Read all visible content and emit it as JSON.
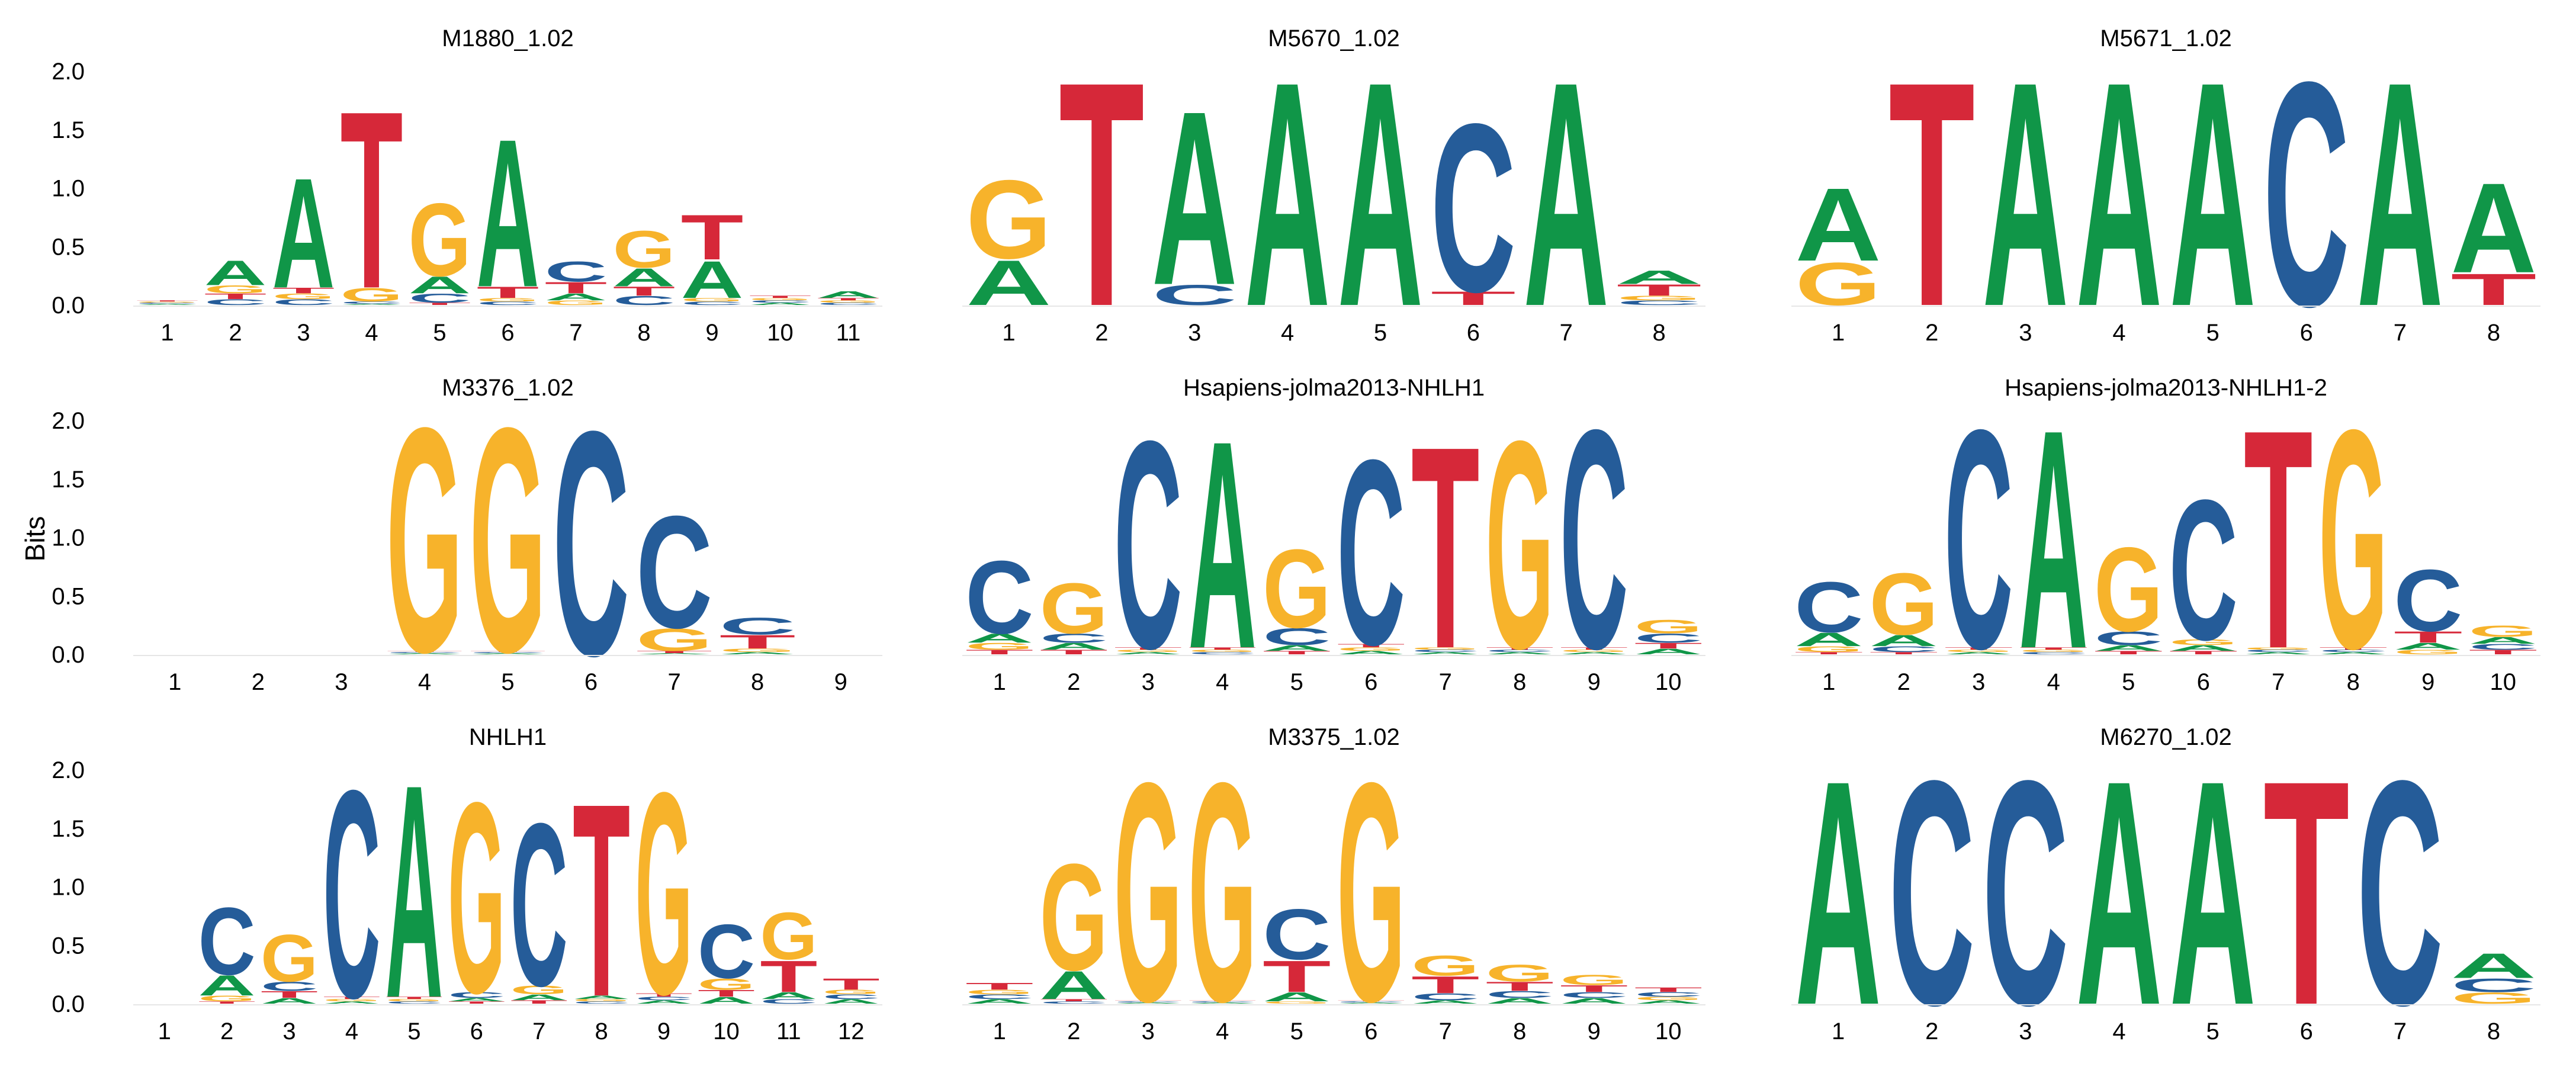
{
  "ylabel": "Bits",
  "colors": {
    "A": "#109648",
    "C": "#255C99",
    "G": "#F7B32B",
    "T": "#D62839"
  },
  "chart_data": [
    {
      "type": "sequence-logo",
      "title": "M1880_1.02",
      "ylim": [
        0,
        2.0
      ],
      "yticks": [
        "0.0",
        "0.5",
        "1.0",
        "1.5",
        "2.0"
      ],
      "positions": [
        {
          "A": 0.01,
          "C": 0.01,
          "G": 0.01,
          "T": 0.01
        },
        {
          "A": 0.22,
          "C": 0.05,
          "G": 0.07,
          "T": 0.05
        },
        {
          "A": 0.98,
          "C": 0.05,
          "G": 0.05,
          "T": 0.05
        },
        {
          "A": 0.01,
          "C": 0.02,
          "G": 0.12,
          "T": 1.58
        },
        {
          "A": 0.15,
          "C": 0.08,
          "G": 0.65,
          "T": 0.02
        },
        {
          "A": 1.32,
          "C": 0.03,
          "G": 0.03,
          "T": 0.1
        },
        {
          "A": 0.06,
          "C": 0.18,
          "G": 0.04,
          "T": 0.1
        },
        {
          "A": 0.16,
          "C": 0.08,
          "G": 0.33,
          "T": 0.08
        },
        {
          "A": 0.33,
          "C": 0.03,
          "G": 0.03,
          "T": 0.4
        },
        {
          "A": 0.02,
          "C": 0.02,
          "G": 0.02,
          "T": 0.02
        },
        {
          "A": 0.06,
          "C": 0.02,
          "G": 0.02,
          "T": 0.02
        }
      ]
    },
    {
      "type": "sequence-logo",
      "title": "M5670_1.02",
      "ylim": [
        0,
        2.0
      ],
      "yticks": [
        "0.0",
        "0.5",
        "1.0",
        "1.5",
        "2.0"
      ],
      "positions": [
        {
          "A": 0.4,
          "C": 0,
          "G": 0.7,
          "T": 0
        },
        {
          "A": 0,
          "C": 0,
          "G": 0,
          "T": 2.0
        },
        {
          "A": 1.55,
          "C": 0.18,
          "G": 0,
          "T": 0
        },
        {
          "A": 2.0,
          "C": 0,
          "G": 0,
          "T": 0
        },
        {
          "A": 2.0,
          "C": 0,
          "G": 0,
          "T": 0
        },
        {
          "A": 0,
          "C": 1.5,
          "G": 0,
          "T": 0.12
        },
        {
          "A": 2.0,
          "C": 0,
          "G": 0,
          "T": 0
        },
        {
          "A": 0.12,
          "C": 0.04,
          "G": 0.04,
          "T": 0.1
        }
      ]
    },
    {
      "type": "sequence-logo",
      "title": "M5671_1.02",
      "ylim": [
        0,
        2.0
      ],
      "yticks": [
        "0.0",
        "0.5",
        "1.0",
        "1.5",
        "2.0"
      ],
      "positions": [
        {
          "A": 0.65,
          "C": 0,
          "G": 0.38,
          "T": 0
        },
        {
          "A": 0,
          "C": 0,
          "G": 0,
          "T": 2.0
        },
        {
          "A": 2.0,
          "C": 0,
          "G": 0,
          "T": 0
        },
        {
          "A": 2.0,
          "C": 0,
          "G": 0,
          "T": 0
        },
        {
          "A": 2.0,
          "C": 0,
          "G": 0,
          "T": 0
        },
        {
          "A": 0,
          "C": 2.0,
          "G": 0,
          "T": 0
        },
        {
          "A": 2.0,
          "C": 0,
          "G": 0,
          "T": 0
        },
        {
          "A": 0.8,
          "C": 0,
          "G": 0,
          "T": 0.28
        }
      ]
    },
    {
      "type": "sequence-logo",
      "title": "M3376_1.02",
      "ylim": [
        0,
        2.0
      ],
      "yticks": [
        "0.0",
        "0.5",
        "1.0",
        "1.5",
        "2.0"
      ],
      "positions": [
        {
          "A": 0,
          "C": 0,
          "G": 0,
          "T": 0
        },
        {
          "A": 0,
          "C": 0,
          "G": 0,
          "T": 0
        },
        {
          "A": 0,
          "C": 0,
          "G": 0,
          "T": 0
        },
        {
          "A": 0.01,
          "C": 0.01,
          "G": 2.0,
          "T": 0.01
        },
        {
          "A": 0.01,
          "C": 0.01,
          "G": 2.0,
          "T": 0.01
        },
        {
          "A": 0,
          "C": 2.0,
          "G": 0,
          "T": 0
        },
        {
          "A": 0.01,
          "C": 1.0,
          "G": 0.2,
          "T": 0.02
        },
        {
          "A": 0.02,
          "C": 0.15,
          "G": 0.03,
          "T": 0.12
        },
        {
          "A": 0,
          "C": 0,
          "G": 0,
          "T": 0
        }
      ]
    },
    {
      "type": "sequence-logo",
      "title": "Hsapiens-jolma2013-NHLH1",
      "ylim": [
        0,
        2.0
      ],
      "yticks": [
        "0.0",
        "0.5",
        "1.0",
        "1.5",
        "2.0"
      ],
      "positions": [
        {
          "A": 0.08,
          "C": 0.65,
          "G": 0.06,
          "T": 0.04
        },
        {
          "A": 0.06,
          "C": 0.08,
          "G": 0.45,
          "T": 0.04
        },
        {
          "A": 0.02,
          "C": 1.85,
          "G": 0.02,
          "T": 0.02
        },
        {
          "A": 1.85,
          "C": 0.02,
          "G": 0.02,
          "T": 0.02
        },
        {
          "A": 0.05,
          "C": 0.15,
          "G": 0.7,
          "T": 0.03
        },
        {
          "A": 0.03,
          "C": 1.65,
          "G": 0.03,
          "T": 0.03
        },
        {
          "A": 0.02,
          "C": 0.02,
          "G": 0.02,
          "T": 1.8
        },
        {
          "A": 0.02,
          "C": 0.02,
          "G": 1.85,
          "T": 0.02
        },
        {
          "A": 0.02,
          "C": 1.95,
          "G": 0.02,
          "T": 0.02
        },
        {
          "A": 0.05,
          "C": 0.08,
          "G": 0.12,
          "T": 0.05
        }
      ]
    },
    {
      "type": "sequence-logo",
      "title": "Hsapiens-jolma2013-NHLH1-2",
      "ylim": [
        0,
        2.0
      ],
      "yticks": [
        "0.0",
        "0.5",
        "1.0",
        "1.5",
        "2.0"
      ],
      "positions": [
        {
          "A": 0.12,
          "C": 0.45,
          "G": 0.05,
          "T": 0.02
        },
        {
          "A": 0.1,
          "C": 0.05,
          "G": 0.55,
          "T": 0.02
        },
        {
          "A": 0.02,
          "C": 1.95,
          "G": 0.02,
          "T": 0.02
        },
        {
          "A": 1.95,
          "C": 0.02,
          "G": 0.02,
          "T": 0.02
        },
        {
          "A": 0.05,
          "C": 0.12,
          "G": 0.75,
          "T": 0.03
        },
        {
          "A": 0.05,
          "C": 1.25,
          "G": 0.05,
          "T": 0.03
        },
        {
          "A": 0.02,
          "C": 0.02,
          "G": 0.02,
          "T": 1.95
        },
        {
          "A": 0.02,
          "C": 0.02,
          "G": 1.95,
          "T": 0.02
        },
        {
          "A": 0.06,
          "C": 0.55,
          "G": 0.04,
          "T": 0.1
        },
        {
          "A": 0.06,
          "C": 0.05,
          "G": 0.1,
          "T": 0.04
        }
      ]
    },
    {
      "type": "sequence-logo",
      "title": "NHLH1",
      "ylim": [
        0,
        2.0
      ],
      "yticks": [
        "0.0",
        "0.5",
        "1.0",
        "1.5",
        "2.0"
      ],
      "positions": [
        {
          "A": 0,
          "C": 0,
          "G": 0,
          "T": 0
        },
        {
          "A": 0.18,
          "C": 0.6,
          "G": 0.05,
          "T": 0.02
        },
        {
          "A": 0.05,
          "C": 0.08,
          "G": 0.42,
          "T": 0.06
        },
        {
          "A": 0.02,
          "C": 1.85,
          "G": 0.02,
          "T": 0.02
        },
        {
          "A": 1.9,
          "C": 0.02,
          "G": 0.02,
          "T": 0.02
        },
        {
          "A": 0.03,
          "C": 0.05,
          "G": 1.7,
          "T": 0.02
        },
        {
          "A": 0.05,
          "C": 1.45,
          "G": 0.08,
          "T": 0.03
        },
        {
          "A": 0.03,
          "C": 0.02,
          "G": 0.02,
          "T": 1.72
        },
        {
          "A": 0.03,
          "C": 0.03,
          "G": 1.8,
          "T": 0.03
        },
        {
          "A": 0.06,
          "C": 0.48,
          "G": 0.1,
          "T": 0.06
        },
        {
          "A": 0.06,
          "C": 0.04,
          "G": 0.42,
          "T": 0.28
        },
        {
          "A": 0.04,
          "C": 0.04,
          "G": 0.04,
          "T": 0.1
        }
      ]
    },
    {
      "type": "sequence-logo",
      "title": "M3375_1.02",
      "ylim": [
        0,
        2.0
      ],
      "yticks": [
        "0.0",
        "0.5",
        "1.0",
        "1.5",
        "2.0"
      ],
      "positions": [
        {
          "A": 0.04,
          "C": 0.04,
          "G": 0.04,
          "T": 0.06
        },
        {
          "A": 0.25,
          "C": 0.02,
          "G": 0.95,
          "T": 0.02
        },
        {
          "A": 0.01,
          "C": 0.01,
          "G": 1.95,
          "T": 0.01
        },
        {
          "A": 0.01,
          "C": 0.01,
          "G": 1.95,
          "T": 0.01
        },
        {
          "A": 0.08,
          "C": 0.45,
          "G": 0.02,
          "T": 0.28
        },
        {
          "A": 0.01,
          "C": 0.01,
          "G": 1.95,
          "T": 0.01
        },
        {
          "A": 0.03,
          "C": 0.06,
          "G": 0.18,
          "T": 0.15
        },
        {
          "A": 0.05,
          "C": 0.06,
          "G": 0.15,
          "T": 0.08
        },
        {
          "A": 0.05,
          "C": 0.05,
          "G": 0.09,
          "T": 0.06
        },
        {
          "A": 0.03,
          "C": 0.04,
          "G": 0.03,
          "T": 0.04
        }
      ]
    },
    {
      "type": "sequence-logo",
      "title": "M6270_1.02",
      "ylim": [
        0,
        2.0
      ],
      "yticks": [
        "0.0",
        "0.5",
        "1.0",
        "1.5",
        "2.0"
      ],
      "positions": [
        {
          "A": 2.0,
          "C": 0,
          "G": 0,
          "T": 0
        },
        {
          "A": 0,
          "C": 2.0,
          "G": 0,
          "T": 0
        },
        {
          "A": 0,
          "C": 2.0,
          "G": 0,
          "T": 0
        },
        {
          "A": 2.0,
          "C": 0,
          "G": 0,
          "T": 0
        },
        {
          "A": 2.0,
          "C": 0,
          "G": 0,
          "T": 0
        },
        {
          "A": 0,
          "C": 0,
          "G": 0,
          "T": 2.0
        },
        {
          "A": 0,
          "C": 2.0,
          "G": 0,
          "T": 0
        },
        {
          "A": 0.22,
          "C": 0.12,
          "G": 0.1,
          "T": 0
        }
      ]
    }
  ]
}
